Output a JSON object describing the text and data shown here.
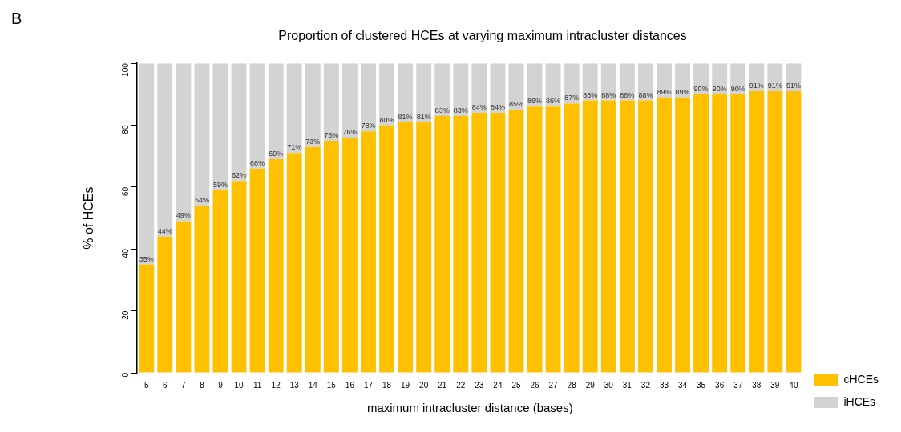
{
  "chart_data": {
    "type": "bar",
    "title": "Proportion of clustered HCEs at varying maximum intracluster distances",
    "xlabel": "maximum intracluster distance (bases)",
    "ylabel": "% of HCEs",
    "annotations": [
      "B"
    ],
    "categories": [
      "5",
      "6",
      "7",
      "8",
      "9",
      "10",
      "11",
      "12",
      "13",
      "14",
      "15",
      "16",
      "17",
      "18",
      "19",
      "20",
      "21",
      "22",
      "23",
      "24",
      "25",
      "26",
      "27",
      "28",
      "29",
      "30",
      "31",
      "32",
      "33",
      "34",
      "35",
      "36",
      "37",
      "38",
      "39",
      "40"
    ],
    "stacked": true,
    "series": [
      {
        "name": "cHCEs",
        "color": "#ffc000",
        "values": [
          35,
          44,
          49,
          54,
          59,
          62,
          66,
          69,
          71,
          73,
          75,
          76,
          78,
          80,
          81,
          81,
          83,
          83,
          84,
          84,
          85,
          86,
          86,
          87,
          88,
          88,
          88,
          88,
          89,
          89,
          90,
          90,
          90,
          91,
          91,
          91
        ],
        "value_labels": [
          "35%",
          "44%",
          "49%",
          "54%",
          "59%",
          "62%",
          "66%",
          "69%",
          "71%",
          "73%",
          "75%",
          "76%",
          "78%",
          "80%",
          "81%",
          "81%",
          "83%",
          "83%",
          "84%",
          "84%",
          "85%",
          "86%",
          "86%",
          "87%",
          "88%",
          "88%",
          "88%",
          "88%",
          "89%",
          "89%",
          "90%",
          "90%",
          "90%",
          "91%",
          "91%",
          "91%"
        ]
      },
      {
        "name": "iHCEs",
        "color": "#d3d3d3",
        "values": [
          65,
          56,
          51,
          46,
          41,
          38,
          34,
          31,
          29,
          27,
          25,
          24,
          22,
          20,
          19,
          19,
          17,
          17,
          16,
          16,
          15,
          14,
          14,
          13,
          12,
          12,
          12,
          12,
          11,
          11,
          10,
          10,
          10,
          9,
          9,
          9
        ]
      }
    ],
    "ylim": [
      0,
      100
    ],
    "yticks": [
      0,
      20,
      40,
      60,
      80,
      100
    ],
    "legend": "right"
  }
}
